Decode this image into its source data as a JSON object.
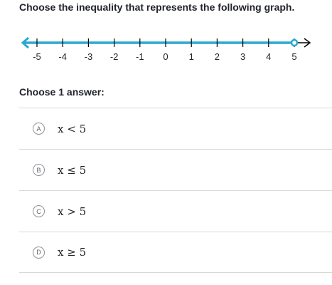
{
  "question": "Choose the inequality that represents the following graph.",
  "prompt": "Choose 1 answer:",
  "number_line": {
    "ticks": [
      "-5",
      "-4",
      "-3",
      "-2",
      "-1",
      "0",
      "1",
      "2",
      "3",
      "4",
      "5"
    ],
    "shaded_direction": "left",
    "endpoint_value": 5,
    "endpoint_type": "open",
    "line_color": "#29a9d1"
  },
  "choices": [
    {
      "letter": "A",
      "text": "x < 5"
    },
    {
      "letter": "B",
      "text": "x ≤ 5"
    },
    {
      "letter": "C",
      "text": "x > 5"
    },
    {
      "letter": "D",
      "text": "x ≥ 5"
    }
  ]
}
